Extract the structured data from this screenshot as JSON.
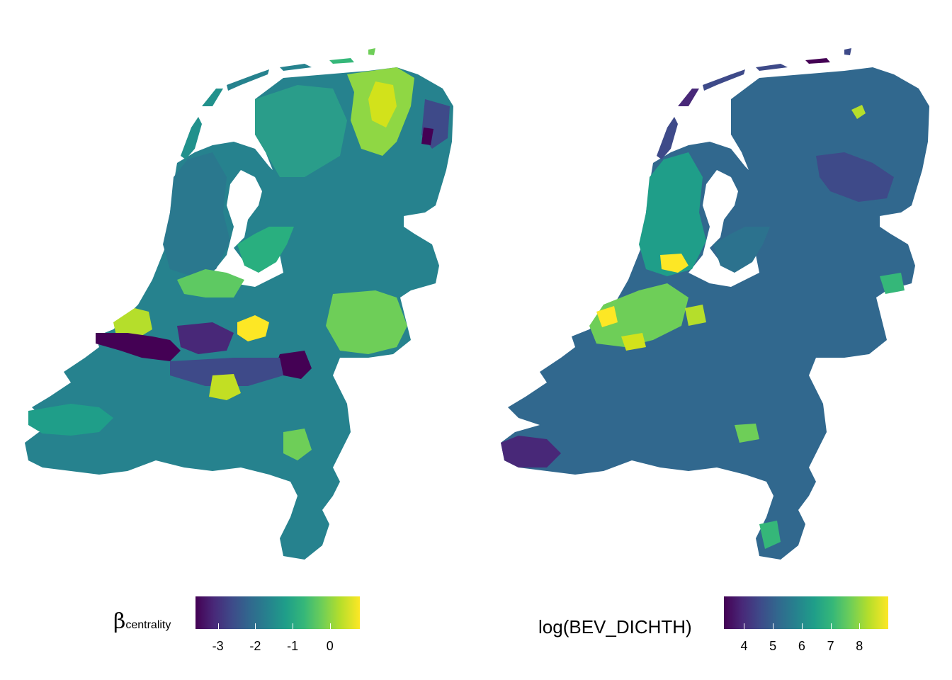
{
  "panels": [
    {
      "id": "centrality",
      "legend": {
        "title_symbol": "β",
        "title_subscript": "centrality",
        "ticks": [
          "-3",
          "-2",
          "-1",
          "0"
        ],
        "tick_values": [
          -3,
          -2,
          -1,
          0
        ],
        "range": [
          -3.6,
          0.8
        ]
      },
      "map_fill_levels": {
        "base": "#26828e",
        "north_east_high": "#8fd744",
        "utrecht_high": "#fde725",
        "rotterdam_low": "#440154",
        "nijmegen_low": "#440154"
      }
    },
    {
      "id": "density",
      "legend": {
        "title": "log(BEV_DICHTH)",
        "ticks": [
          "4",
          "5",
          "6",
          "7",
          "8"
        ],
        "tick_values": [
          4,
          5,
          6,
          7,
          8
        ],
        "range": [
          3.3,
          9.0
        ]
      },
      "map_fill_levels": {
        "base": "#31688e",
        "randstad_high": "#fde725",
        "wadden_low": "#440154"
      }
    }
  ],
  "colorscale": "viridis",
  "viridis_stops": [
    "#440154",
    "#482878",
    "#3e4a89",
    "#31688e",
    "#26828e",
    "#1f9e89",
    "#35b779",
    "#6ece58",
    "#b5de2b",
    "#fde725"
  ]
}
